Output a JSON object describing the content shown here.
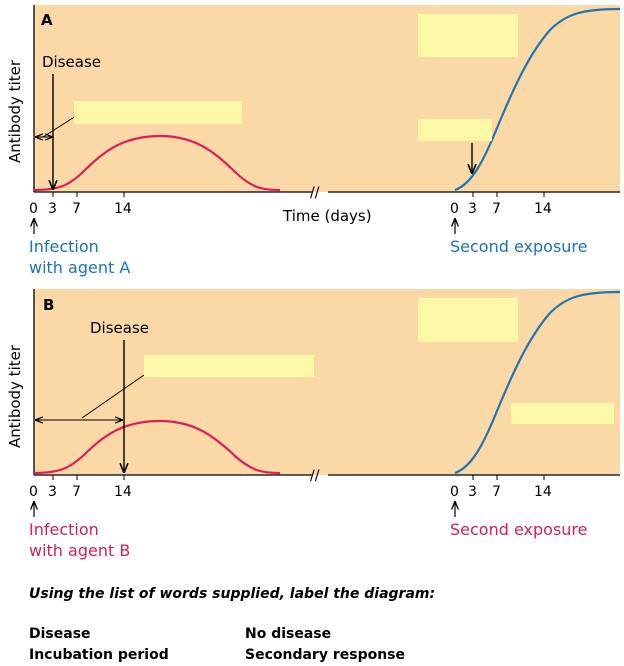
{
  "colors": {
    "panel_bg": "#fad9a6",
    "blank_label": "#fdf8a8",
    "primary_curve": "#dc1f5a",
    "secondary_curve": "#2373b4",
    "caption_blue": "#1a73b5",
    "caption_red": "#d21f59"
  },
  "axis": {
    "ylabel": "Antibody titer",
    "xlabel": "Time (days)",
    "ticks_left": [
      "0",
      "3",
      "7",
      "14"
    ],
    "ticks_right": [
      "0",
      "3",
      "7",
      "14"
    ],
    "break_mark": "//"
  },
  "panel_a": {
    "letter": "A",
    "disease_label": "Disease",
    "caption_left_line1": "Infection",
    "caption_left_line2": "with agent A",
    "caption_right": "Second exposure"
  },
  "panel_b": {
    "letter": "B",
    "disease_label": "Disease",
    "caption_left_line1": "Infection",
    "caption_left_line2": "with agent B",
    "caption_right": "Second exposure"
  },
  "instructions": "Using the list of words supplied, label the diagram:",
  "word_list": {
    "col1": [
      "Disease",
      "Incubation period"
    ],
    "col2": [
      "No disease",
      "Secondary response"
    ]
  }
}
